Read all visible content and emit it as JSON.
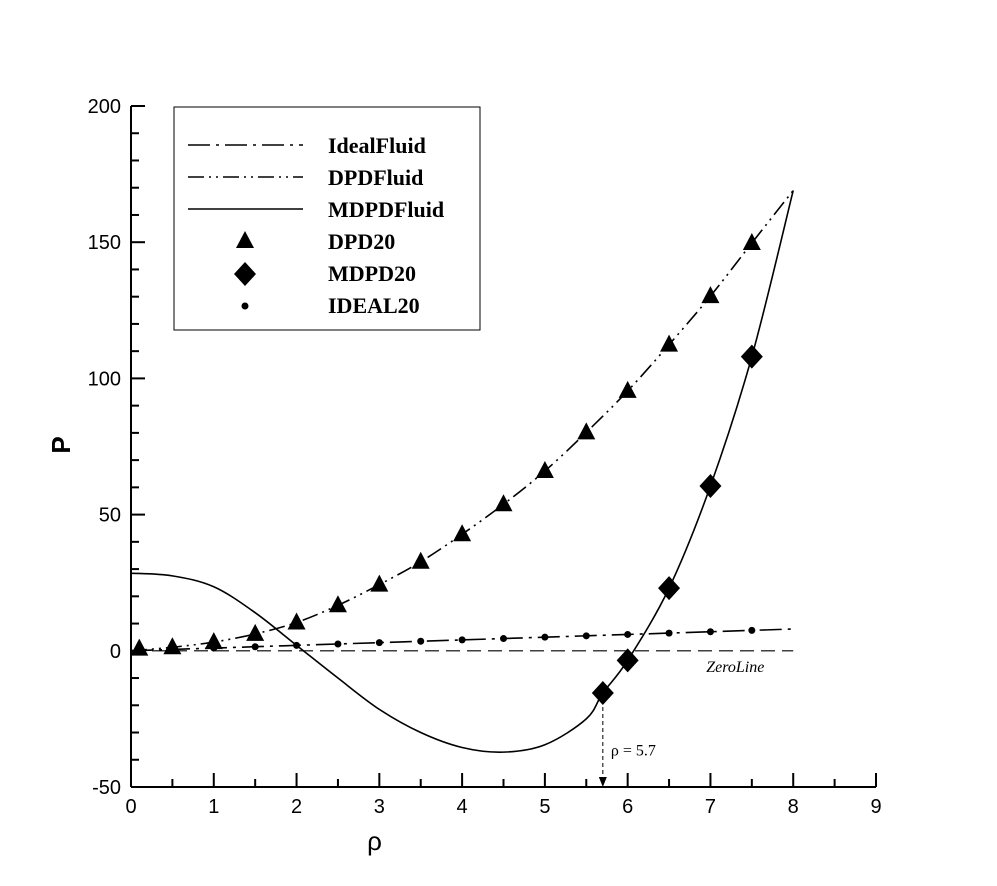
{
  "chart_data": {
    "type": "line",
    "xlabel": "ρ",
    "ylabel": "P",
    "xlim": [
      0,
      9
    ],
    "ylim": [
      -50,
      200
    ],
    "xticks": [
      "0",
      "1",
      "2",
      "3",
      "4",
      "5",
      "6",
      "7",
      "8",
      "9"
    ],
    "yticks": [
      "-50",
      "0",
      "50",
      "100",
      "150",
      "200"
    ],
    "grid": false,
    "legend_position": "top-left",
    "series": [
      {
        "name": "IdealFluid",
        "style": "long-dash-dot",
        "x": [
          0,
          0.5,
          1,
          1.5,
          2,
          2.5,
          3,
          3.5,
          4,
          4.5,
          5,
          5.5,
          6,
          6.5,
          7,
          7.5,
          8
        ],
        "values": [
          0,
          0.5,
          1,
          1.5,
          2,
          2.5,
          3,
          3.5,
          4,
          4.5,
          5,
          5.5,
          6,
          6.5,
          7,
          7.5,
          8
        ]
      },
      {
        "name": "DPDFluid",
        "style": "dash-dot-dot",
        "x": [
          0,
          0.5,
          1,
          1.5,
          2,
          2.5,
          3,
          3.5,
          4,
          4.5,
          5,
          5.5,
          6,
          6.5,
          7,
          7.5,
          8
        ],
        "values": [
          0,
          1.3,
          3.2,
          6.2,
          10.4,
          16.7,
          24.3,
          32.7,
          42.8,
          53.8,
          66,
          80.2,
          95.4,
          112.4,
          130.2,
          149.7,
          169
        ]
      },
      {
        "name": "MDPDFluid",
        "style": "solid",
        "x": [
          0,
          0.5,
          1,
          1.5,
          2,
          2.5,
          3,
          3.5,
          4,
          4.5,
          5,
          5.5,
          5.7,
          6,
          6.5,
          7,
          7.5,
          8
        ],
        "values": [
          28.5,
          27.5,
          23.5,
          14,
          2,
          -10,
          -21.5,
          -30,
          -35.5,
          -37.2,
          -34.5,
          -25,
          -15.5,
          -3.5,
          23,
          60.5,
          108,
          169
        ]
      },
      {
        "name": "DPD20",
        "marker": "triangle",
        "x": [
          0.1,
          0.5,
          1,
          1.5,
          2,
          2.5,
          3,
          3.5,
          4,
          4.5,
          5,
          5.5,
          6,
          6.5,
          7,
          7.5
        ],
        "values": [
          0.8,
          1.3,
          3.2,
          6.2,
          10.4,
          16.7,
          24.3,
          32.7,
          42.8,
          53.8,
          66,
          80.2,
          95.4,
          112.4,
          130.2,
          149.7
        ]
      },
      {
        "name": "MDPD20",
        "marker": "diamond",
        "x": [
          5.7,
          6,
          6.5,
          7,
          7.5
        ],
        "values": [
          -15.5,
          -3.5,
          23,
          60.5,
          108
        ]
      },
      {
        "name": "IDEAL20",
        "marker": "dot",
        "x": [
          0.1,
          0.5,
          1,
          1.5,
          2,
          2.5,
          3,
          3.5,
          4,
          4.5,
          5,
          5.5,
          6,
          6.5,
          7,
          7.5
        ],
        "values": [
          0.1,
          0.5,
          1,
          1.5,
          2,
          2.5,
          3,
          3.5,
          4,
          4.5,
          5,
          5.5,
          6,
          6.5,
          7,
          7.5
        ]
      }
    ],
    "reference_lines": [
      {
        "name": "ZeroLine",
        "orientation": "horizontal",
        "value": 0,
        "label": "ZeroLine"
      },
      {
        "name": "rho-5.7",
        "orientation": "vertical",
        "value": 5.7,
        "from": -15.5,
        "to": -50,
        "label": "ρ = 5.7"
      }
    ]
  }
}
